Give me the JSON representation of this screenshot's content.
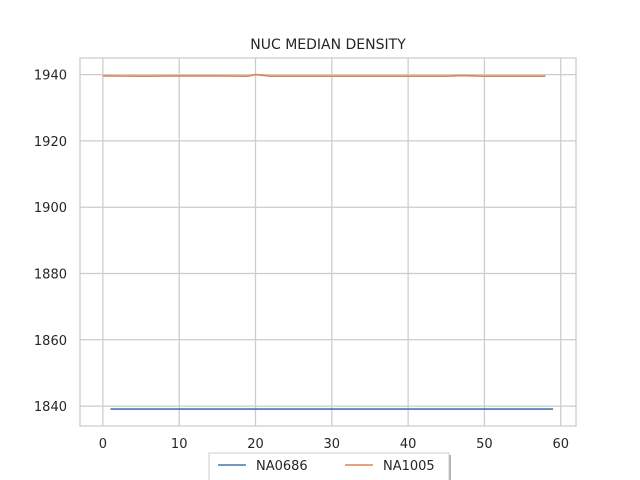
{
  "chart_data": {
    "type": "line",
    "title": "NUC MEDIAN DENSITY",
    "xlabel": "",
    "ylabel": "",
    "xlim": [
      -3,
      62
    ],
    "ylim": [
      1834,
      1945
    ],
    "x_ticks": [
      0,
      10,
      20,
      30,
      40,
      50,
      60
    ],
    "y_ticks": [
      1840,
      1860,
      1880,
      1900,
      1920,
      1940
    ],
    "grid": true,
    "legend_placement": "bottom-center",
    "series": [
      {
        "name": "NA0686",
        "color": "#4c72b0",
        "points": [
          [
            1,
            1839.1
          ],
          [
            59,
            1839.1
          ]
        ]
      },
      {
        "name": "NA1005",
        "color": "#dd8452",
        "points": [
          [
            0,
            1939.6
          ],
          [
            5,
            1939.5
          ],
          [
            10,
            1939.6
          ],
          [
            15,
            1939.6
          ],
          [
            19,
            1939.5
          ],
          [
            20,
            1940.0
          ],
          [
            22,
            1939.5
          ],
          [
            30,
            1939.5
          ],
          [
            40,
            1939.5
          ],
          [
            45,
            1939.5
          ],
          [
            47,
            1939.7
          ],
          [
            50,
            1939.5
          ],
          [
            55,
            1939.5
          ],
          [
            58,
            1939.5
          ]
        ]
      }
    ]
  }
}
